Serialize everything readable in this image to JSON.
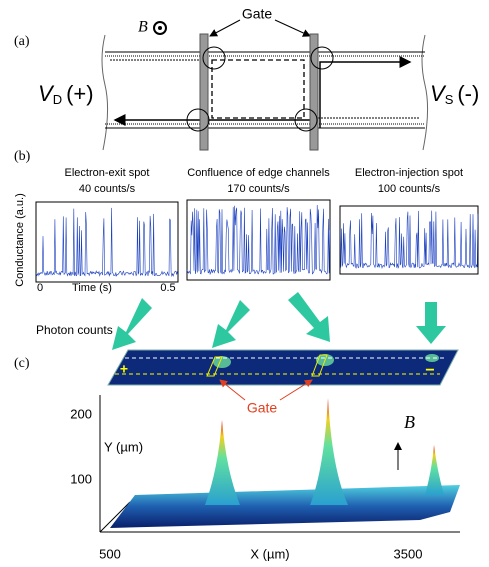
{
  "panel_a": {
    "label": "(a)",
    "field": "B",
    "gate": "Gate",
    "drain": {
      "symbol": "V",
      "subscript": "D",
      "suffix": "(+)"
    },
    "source": {
      "symbol": "V",
      "subscript": "S",
      "suffix": "(-)"
    }
  },
  "panel_b": {
    "label": "(b)",
    "y_label": "Conductance (a.u.)",
    "x_start": "0",
    "x_label": "Time (s)",
    "x_end": "0.5",
    "traces": [
      {
        "title": "Electron-exit spot",
        "rate": "40 counts/s"
      },
      {
        "title": "Confluence of edge channels",
        "rate": "170 counts/s"
      },
      {
        "title": "Electron-injection spot",
        "rate": "100 counts/s"
      }
    ]
  },
  "panel_c": {
    "label": "(c)",
    "photon_counts": "Photon counts",
    "plus": "+",
    "minus": "−",
    "gate": "Gate",
    "y_tick_high": "200",
    "y_tick_low": "100",
    "y_label": "Y (µm)",
    "field": "B",
    "x_start": "500",
    "x_label": "X (µm)",
    "x_end": "3500"
  }
}
